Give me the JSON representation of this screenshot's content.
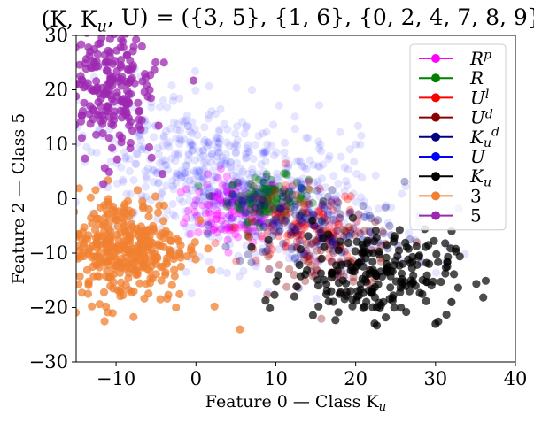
{
  "chart_data": {
    "type": "scatter",
    "title": "(K, K_u, U) = ({3, 5}, {1, 6}, {0, 2, 4, 7, 8, 9})",
    "xlabel": "Feature 0 — Class K_u",
    "ylabel": "Feature 2 — Class 5",
    "xlim": [
      -15,
      40
    ],
    "ylim": [
      -30,
      30
    ],
    "xticks": [
      "−10",
      "0",
      "10",
      "20",
      "30",
      "40"
    ],
    "yticks": [
      "−30",
      "−20",
      "−10",
      "0",
      "10",
      "20",
      "30"
    ],
    "xtick_values": [
      -10,
      0,
      10,
      20,
      30,
      40
    ],
    "ytick_values": [
      -30,
      -20,
      -10,
      0,
      10,
      20,
      30
    ],
    "grid": false,
    "legend_position": "top-right",
    "series": [
      {
        "name": "R^p",
        "color": "#ff00ff",
        "center": [
          5,
          -2
        ],
        "spread": [
          3,
          3
        ],
        "n": 160,
        "alpha": 0.35
      },
      {
        "name": "R",
        "color": "#008000",
        "center": [
          9,
          0
        ],
        "spread": [
          2.5,
          2
        ],
        "n": 140,
        "alpha": 0.4
      },
      {
        "name": "U^l",
        "color": "#ff0000",
        "center": [
          13,
          -5
        ],
        "spread": [
          4,
          3.5
        ],
        "n": 130,
        "alpha": 0.3
      },
      {
        "name": "U^d",
        "color": "#8b0000",
        "center": [
          18,
          -10
        ],
        "spread": [
          4,
          3
        ],
        "n": 100,
        "alpha": 0.35
      },
      {
        "name": "K_u^d",
        "color": "#000080",
        "center": [
          14,
          -5
        ],
        "spread": [
          6,
          4
        ],
        "n": 130,
        "alpha": 0.3
      },
      {
        "name": "U",
        "color": "#0000ff",
        "center": [
          4,
          3
        ],
        "spread": [
          10,
          7
        ],
        "n": 700,
        "alpha": 0.1
      },
      {
        "name": "K_u",
        "color": "#000000",
        "center": [
          22,
          -14
        ],
        "spread": [
          5,
          4
        ],
        "n": 220,
        "alpha": 0.7
      },
      {
        "name": "3",
        "color": "#f08030",
        "center": [
          -9,
          -9
        ],
        "spread": [
          4,
          5
        ],
        "n": 380,
        "alpha": 0.75
      },
      {
        "name": "5",
        "color": "#9c27b0",
        "center": [
          -11,
          19
        ],
        "spread": [
          3,
          6
        ],
        "n": 230,
        "alpha": 0.75
      }
    ],
    "annotations": [
      {
        "series": "3",
        "x": 5.5,
        "y": -24
      },
      {
        "series": "3",
        "x": -2.5,
        "y": -20
      },
      {
        "series": "K_u",
        "x": 30,
        "y": -23
      },
      {
        "series": "K_u",
        "x": 32,
        "y": -19
      },
      {
        "series": "5",
        "x": -4,
        "y": 25
      }
    ]
  }
}
